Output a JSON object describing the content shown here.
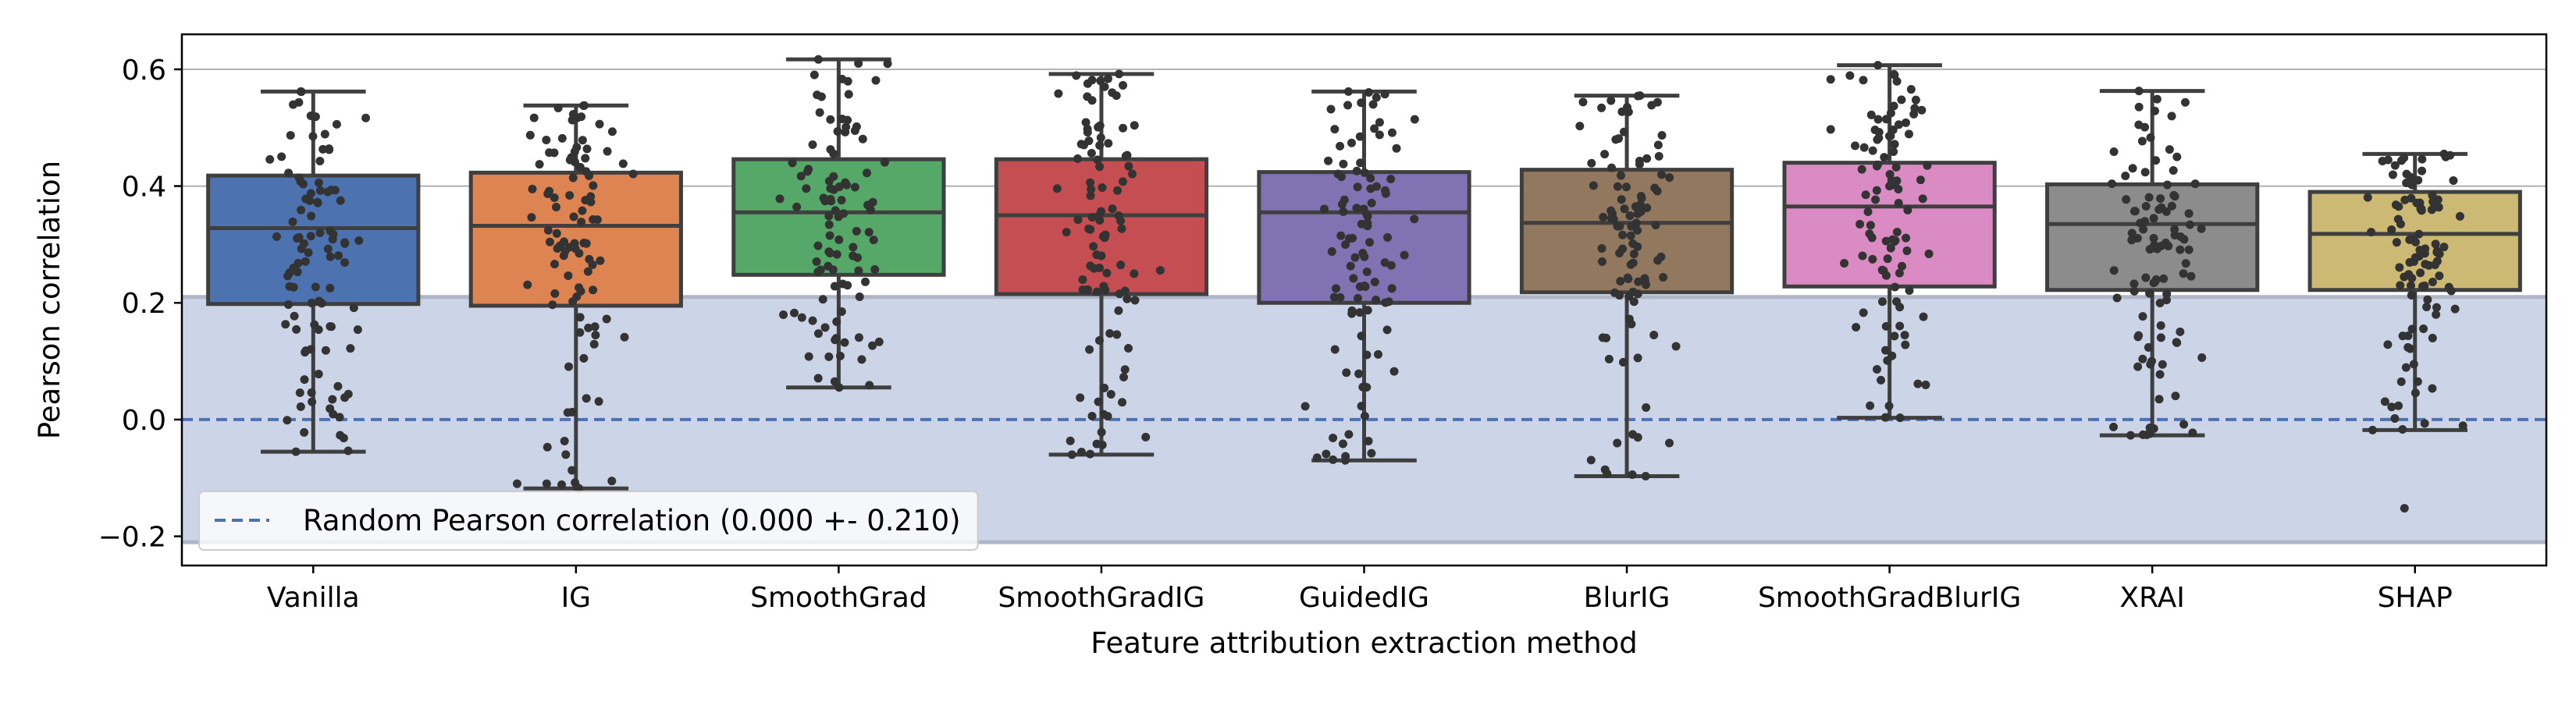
{
  "chart_data": {
    "type": "box",
    "xlabel": "Feature attribution extraction method",
    "ylabel": "Pearson correlation",
    "ylim": [
      -0.25,
      0.66
    ],
    "yticks": [
      -0.2,
      0.0,
      0.2,
      0.4,
      0.6
    ],
    "ytick_labels": [
      "−0.2",
      "0.0",
      "0.2",
      "0.4",
      "0.6"
    ],
    "grid": "horizontal lines at 0.4 and 0.6",
    "legend_position": "bottom-left",
    "categories": [
      "Vanilla",
      "IG",
      "SmoothGrad",
      "SmoothGradIG",
      "GuidedIG",
      "BlurIG",
      "SmoothGradBlurIG",
      "XRAI",
      "SHAP"
    ],
    "boxes": [
      {
        "name": "Vanilla",
        "color": "#4c72b0",
        "whisker_low": -0.055,
        "q1": 0.198,
        "median": 0.328,
        "q3": 0.418,
        "whisker_high": 0.562,
        "outliers": []
      },
      {
        "name": "IG",
        "color": "#dd8452",
        "whisker_low": -0.118,
        "q1": 0.195,
        "median": 0.332,
        "q3": 0.423,
        "whisker_high": 0.538,
        "outliers": []
      },
      {
        "name": "SmoothGrad",
        "color": "#55a868",
        "whisker_low": 0.055,
        "q1": 0.248,
        "median": 0.355,
        "q3": 0.446,
        "whisker_high": 0.617,
        "outliers": []
      },
      {
        "name": "SmoothGradIG",
        "color": "#c44e52",
        "whisker_low": -0.06,
        "q1": 0.215,
        "median": 0.35,
        "q3": 0.446,
        "whisker_high": 0.592,
        "outliers": []
      },
      {
        "name": "GuidedIG",
        "color": "#8172b3",
        "whisker_low": -0.07,
        "q1": 0.2,
        "median": 0.355,
        "q3": 0.424,
        "whisker_high": 0.562,
        "outliers": []
      },
      {
        "name": "BlurIG",
        "color": "#937860",
        "whisker_low": -0.097,
        "q1": 0.218,
        "median": 0.337,
        "q3": 0.428,
        "whisker_high": 0.555,
        "outliers": []
      },
      {
        "name": "SmoothGradBlurIG",
        "color": "#da8bc3",
        "whisker_low": 0.003,
        "q1": 0.228,
        "median": 0.365,
        "q3": 0.44,
        "whisker_high": 0.607,
        "outliers": []
      },
      {
        "name": "XRAI",
        "color": "#8c8c8c",
        "whisker_low": -0.027,
        "q1": 0.222,
        "median": 0.335,
        "q3": 0.403,
        "whisker_high": 0.563,
        "outliers": []
      },
      {
        "name": "SHAP",
        "color": "#ccb974",
        "whisker_low": -0.018,
        "q1": 0.222,
        "median": 0.318,
        "q3": 0.39,
        "whisker_high": 0.455,
        "outliers": [
          -0.152
        ]
      }
    ],
    "reference": {
      "label": "Random Pearson correlation (0.000 +- 0.210)",
      "mean": 0.0,
      "band": [
        -0.21,
        0.21
      ]
    },
    "points_per_box": 100,
    "colors": {
      "band": "#ccd5e7",
      "band_edge": "#aeb6c7",
      "ref_line": "#4c72b0",
      "box_edge": "#3f3f3f",
      "points": "#333333",
      "grid": "#b0b0b0"
    }
  }
}
